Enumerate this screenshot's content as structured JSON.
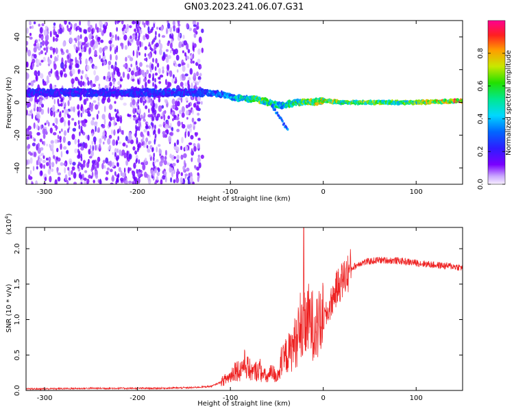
{
  "title": "GN03.2023.241.06.07.G31",
  "colors": {
    "spectrum_hot": "#e8005a",
    "spectrum_mid": "#22e8e8",
    "spectrum_low": "#5a00ff",
    "snr_line": "#ee2222"
  },
  "chart_data": [
    {
      "type": "heatmap",
      "title": "GN03.2023.241.06.07.G31",
      "xlabel": "Height of straight line (km)",
      "ylabel": "Frequency (Hz)",
      "xlim": [
        -320,
        150
      ],
      "ylim": [
        -50,
        50
      ],
      "x_ticks": [
        -300,
        -200,
        -100,
        0,
        100
      ],
      "x_tick_labels": [
        "-300",
        "-200",
        "-100",
        "0",
        "100"
      ],
      "y_ticks": [
        40,
        20,
        0,
        -20,
        -40
      ],
      "y_tick_labels": [
        "40",
        "20",
        "0",
        "-20",
        "-40"
      ],
      "colorbar": {
        "label": "Normalized spectral amplitude",
        "range": [
          0,
          1
        ],
        "ticks": [
          0.0,
          0.2,
          0.4,
          0.6,
          0.8
        ],
        "tick_labels": [
          "0.0",
          "0.2",
          "0.4",
          "0.6",
          "0.8"
        ]
      },
      "ridge_x": [
        -320,
        -200,
        -130,
        -110,
        -95,
        -80,
        -70,
        -55,
        -45,
        -30,
        -15,
        0,
        20,
        60,
        100,
        150
      ],
      "ridge_freq_hz": [
        6,
        6,
        6,
        5,
        3,
        2,
        2,
        -1,
        -2,
        0,
        0,
        1,
        0,
        0,
        0,
        1
      ],
      "ridge_amplitude": [
        0.25,
        0.25,
        0.3,
        0.35,
        0.45,
        0.55,
        0.65,
        0.55,
        0.5,
        0.6,
        0.7,
        0.8,
        0.65,
        0.65,
        0.65,
        0.9
      ],
      "noise_region_x": [
        -320,
        -130
      ]
    },
    {
      "type": "line",
      "xlabel": "Height of straight line (km)",
      "ylabel": "SNR (10 * v/v)",
      "scale_label": "(x10",
      "scale_exponent": "4",
      "scale_suffix": ")",
      "xlim": [
        -320,
        150
      ],
      "ylim": [
        0,
        2.3
      ],
      "x_ticks": [
        -300,
        -200,
        -100,
        0,
        100
      ],
      "x_tick_labels": [
        "-300",
        "-200",
        "-100",
        "0",
        "100"
      ],
      "y_ticks": [
        0.0,
        0.5,
        1.0,
        1.5,
        2.0
      ],
      "y_tick_labels": [
        "0.0",
        "0.5",
        "1.0",
        "1.5",
        "2.0"
      ],
      "series": [
        {
          "x": [
            -320,
            -250,
            -180,
            -140,
            -120,
            -110,
            -100,
            -95,
            -90,
            -85,
            -80,
            -75,
            -70,
            -65,
            -60,
            -55,
            -50,
            -45,
            -40,
            -35,
            -30,
            -25,
            -20,
            -15,
            -10,
            -5,
            0,
            5,
            10,
            15,
            20,
            30,
            40,
            60,
            80,
            100,
            120,
            140,
            150
          ],
          "y": [
            0.02,
            0.03,
            0.03,
            0.04,
            0.06,
            0.12,
            0.2,
            0.3,
            0.28,
            0.38,
            0.3,
            0.25,
            0.3,
            0.22,
            0.18,
            0.25,
            0.2,
            0.35,
            0.5,
            0.55,
            0.7,
            0.75,
            0.9,
            1.0,
            0.9,
            0.9,
            1.0,
            1.1,
            1.3,
            1.45,
            1.55,
            1.72,
            1.8,
            1.84,
            1.83,
            1.8,
            1.77,
            1.75,
            1.73
          ]
        }
      ]
    }
  ]
}
